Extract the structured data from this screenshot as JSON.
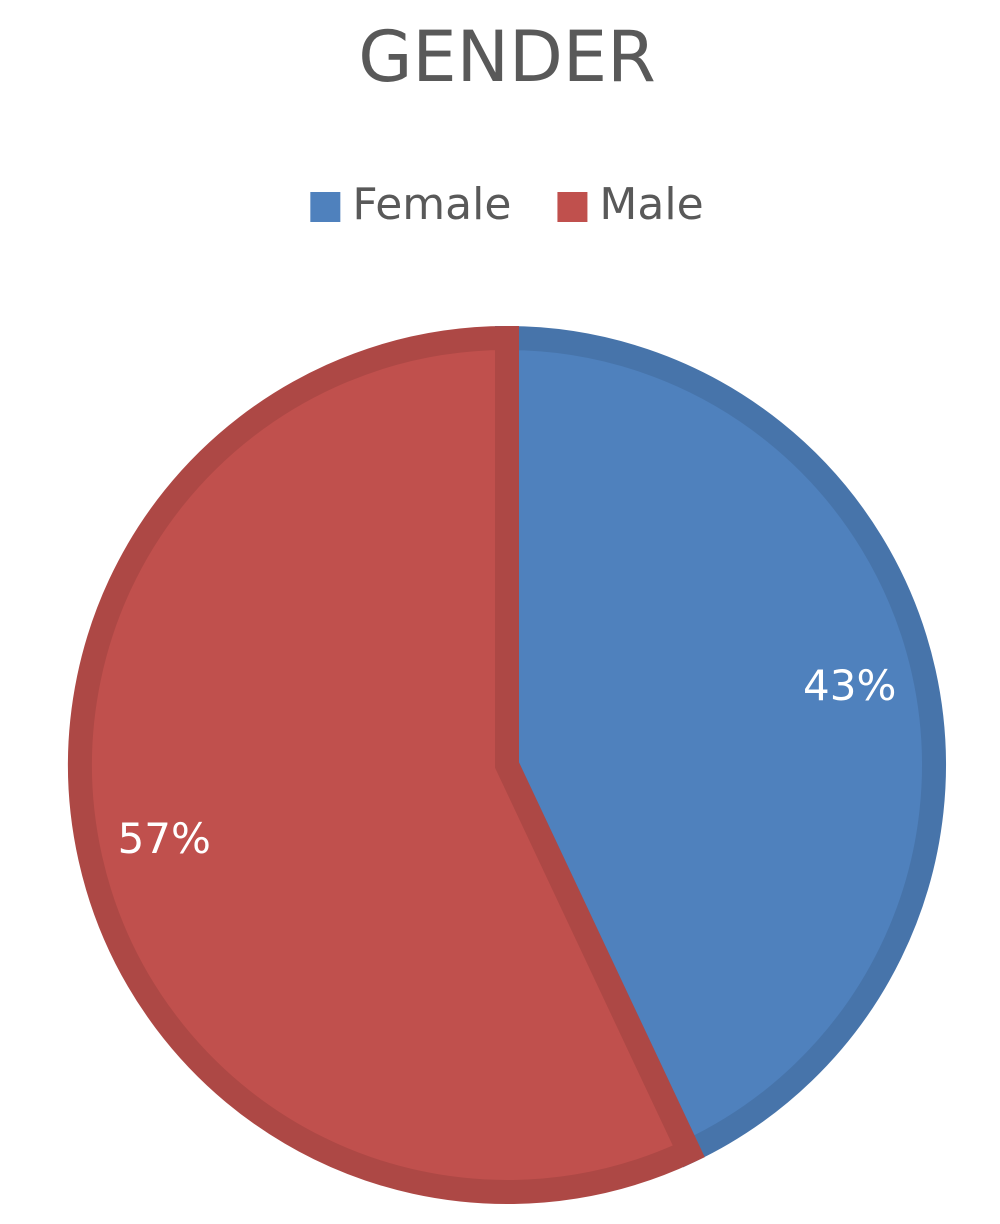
{
  "chart_data": {
    "type": "pie",
    "title": "GENDER",
    "categories": [
      "Female",
      "Male"
    ],
    "values": [
      43,
      57
    ],
    "value_labels": [
      "43%",
      "57%"
    ],
    "colors": [
      "#4f81bd",
      "#c0504d"
    ],
    "legend": "top"
  }
}
